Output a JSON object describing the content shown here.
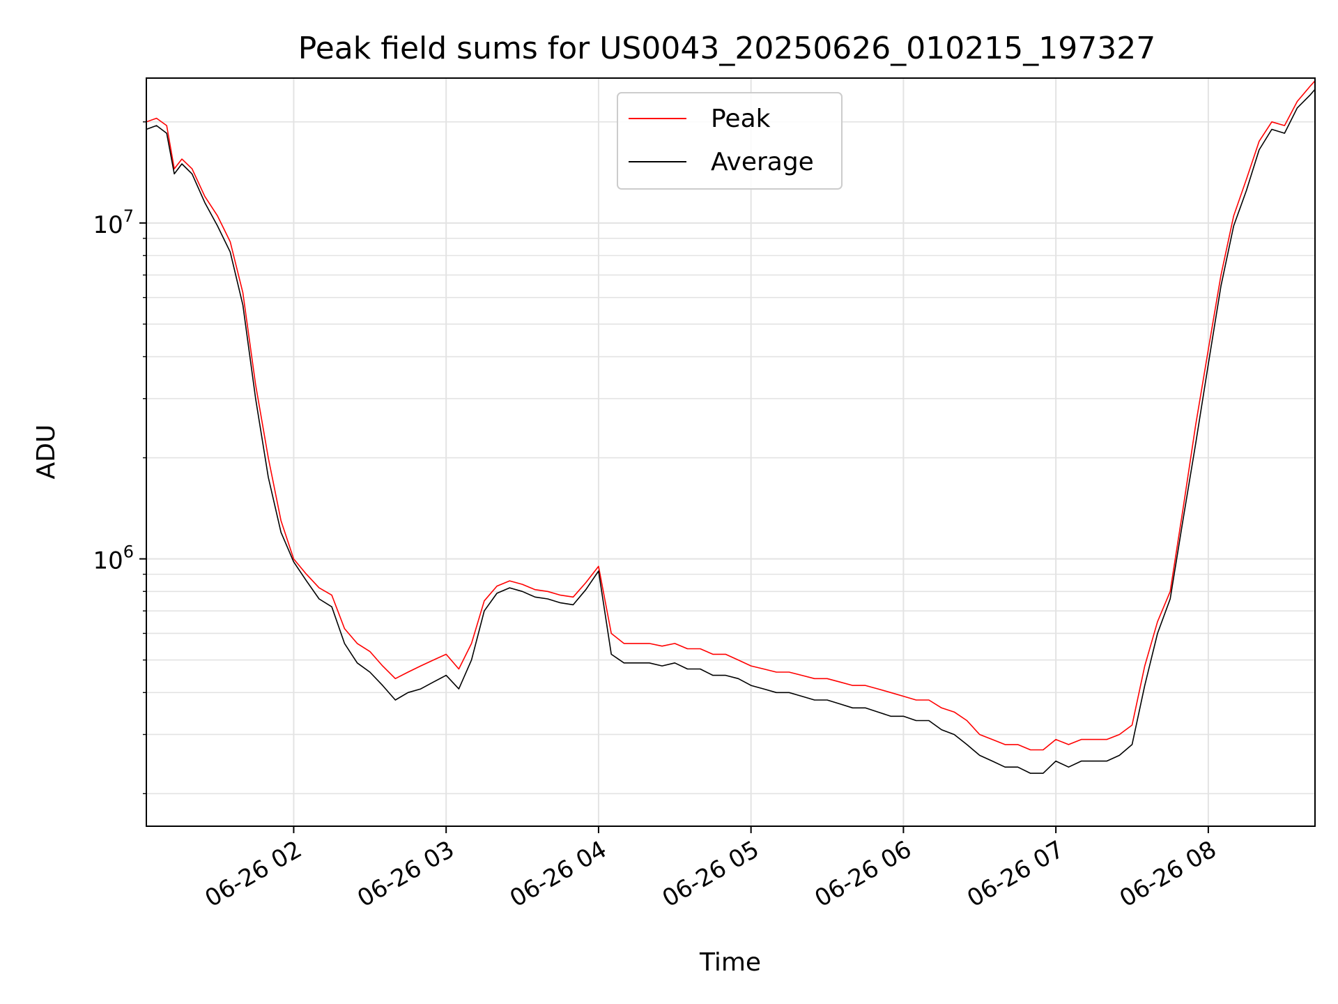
{
  "chart_data": {
    "type": "line",
    "title": "Peak field sums for US0043_20250626_010215_197327",
    "xlabel": "Time",
    "ylabel": "ADU",
    "y_scale": "log",
    "ylim": [
      160000,
      27000000
    ],
    "xlim": [
      "06-26 01:02",
      "06-26 08:42"
    ],
    "grid": true,
    "legend_position": "top-center",
    "x_ticks": [
      "06-26 02",
      "06-26 03",
      "06-26 04",
      "06-26 05",
      "06-26 06",
      "06-26 07",
      "06-26 08"
    ],
    "x_tick_times": [
      "06-26 02:00",
      "06-26 03:00",
      "06-26 04:00",
      "06-26 05:00",
      "06-26 06:00",
      "06-26 07:00",
      "06-26 08:00"
    ],
    "y_ticks": [
      {
        "value": 1000000,
        "base": "10",
        "exp": "6"
      },
      {
        "value": 10000000,
        "base": "10",
        "exp": "7"
      }
    ],
    "series": [
      {
        "name": "Peak",
        "color": "#ff0000",
        "x": [
          "06-26 01:02",
          "06-26 01:06",
          "06-26 01:10",
          "06-26 01:13",
          "06-26 01:16",
          "06-26 01:20",
          "06-26 01:25",
          "06-26 01:30",
          "06-26 01:35",
          "06-26 01:40",
          "06-26 01:45",
          "06-26 01:50",
          "06-26 01:55",
          "06-26 02:00",
          "06-26 02:05",
          "06-26 02:10",
          "06-26 02:15",
          "06-26 02:20",
          "06-26 02:25",
          "06-26 02:30",
          "06-26 02:35",
          "06-26 02:40",
          "06-26 02:45",
          "06-26 02:50",
          "06-26 02:55",
          "06-26 03:00",
          "06-26 03:05",
          "06-26 03:10",
          "06-26 03:15",
          "06-26 03:20",
          "06-26 03:25",
          "06-26 03:30",
          "06-26 03:35",
          "06-26 03:40",
          "06-26 03:45",
          "06-26 03:50",
          "06-26 03:55",
          "06-26 04:00",
          "06-26 04:05",
          "06-26 04:10",
          "06-26 04:15",
          "06-26 04:20",
          "06-26 04:25",
          "06-26 04:30",
          "06-26 04:35",
          "06-26 04:40",
          "06-26 04:45",
          "06-26 04:50",
          "06-26 04:55",
          "06-26 05:00",
          "06-26 05:05",
          "06-26 05:10",
          "06-26 05:15",
          "06-26 05:20",
          "06-26 05:25",
          "06-26 05:30",
          "06-26 05:35",
          "06-26 05:40",
          "06-26 05:45",
          "06-26 05:50",
          "06-26 05:55",
          "06-26 06:00",
          "06-26 06:05",
          "06-26 06:10",
          "06-26 06:15",
          "06-26 06:20",
          "06-26 06:25",
          "06-26 06:30",
          "06-26 06:35",
          "06-26 06:40",
          "06-26 06:45",
          "06-26 06:50",
          "06-26 06:55",
          "06-26 07:00",
          "06-26 07:05",
          "06-26 07:10",
          "06-26 07:15",
          "06-26 07:20",
          "06-26 07:25",
          "06-26 07:30",
          "06-26 07:35",
          "06-26 07:40",
          "06-26 07:45",
          "06-26 07:50",
          "06-26 07:55",
          "06-26 08:00",
          "06-26 08:05",
          "06-26 08:10",
          "06-26 08:15",
          "06-26 08:20",
          "06-26 08:25",
          "06-26 08:30",
          "06-26 08:35",
          "06-26 08:40",
          "06-26 08:42"
        ],
        "values": [
          20000000,
          20500000,
          19500000,
          14500000,
          15500000,
          14500000,
          12000000,
          10500000,
          8800000,
          6200000,
          3300000,
          2000000,
          1300000,
          1000000,
          900000,
          820000,
          780000,
          620000,
          560000,
          530000,
          480000,
          440000,
          460000,
          480000,
          500000,
          520000,
          470000,
          560000,
          750000,
          830000,
          860000,
          840000,
          810000,
          800000,
          780000,
          770000,
          850000,
          950000,
          600000,
          560000,
          560000,
          560000,
          550000,
          560000,
          540000,
          540000,
          520000,
          520000,
          500000,
          480000,
          470000,
          460000,
          460000,
          450000,
          440000,
          440000,
          430000,
          420000,
          420000,
          410000,
          400000,
          390000,
          380000,
          380000,
          360000,
          350000,
          330000,
          300000,
          290000,
          280000,
          280000,
          270000,
          270000,
          290000,
          280000,
          290000,
          290000,
          290000,
          300000,
          320000,
          480000,
          650000,
          800000,
          1400000,
          2500000,
          4200000,
          7000000,
          10500000,
          13500000,
          17500000,
          20000000,
          19500000,
          23000000,
          25500000,
          26500000
        ]
      },
      {
        "name": "Average",
        "color": "#000000",
        "x": [
          "06-26 01:02",
          "06-26 01:06",
          "06-26 01:10",
          "06-26 01:13",
          "06-26 01:16",
          "06-26 01:20",
          "06-26 01:25",
          "06-26 01:30",
          "06-26 01:35",
          "06-26 01:40",
          "06-26 01:45",
          "06-26 01:50",
          "06-26 01:55",
          "06-26 02:00",
          "06-26 02:05",
          "06-26 02:10",
          "06-26 02:15",
          "06-26 02:20",
          "06-26 02:25",
          "06-26 02:30",
          "06-26 02:35",
          "06-26 02:40",
          "06-26 02:45",
          "06-26 02:50",
          "06-26 02:55",
          "06-26 03:00",
          "06-26 03:05",
          "06-26 03:10",
          "06-26 03:15",
          "06-26 03:20",
          "06-26 03:25",
          "06-26 03:30",
          "06-26 03:35",
          "06-26 03:40",
          "06-26 03:45",
          "06-26 03:50",
          "06-26 03:55",
          "06-26 04:00",
          "06-26 04:05",
          "06-26 04:10",
          "06-26 04:15",
          "06-26 04:20",
          "06-26 04:25",
          "06-26 04:30",
          "06-26 04:35",
          "06-26 04:40",
          "06-26 04:45",
          "06-26 04:50",
          "06-26 04:55",
          "06-26 05:00",
          "06-26 05:05",
          "06-26 05:10",
          "06-26 05:15",
          "06-26 05:20",
          "06-26 05:25",
          "06-26 05:30",
          "06-26 05:35",
          "06-26 05:40",
          "06-26 05:45",
          "06-26 05:50",
          "06-26 05:55",
          "06-26 06:00",
          "06-26 06:05",
          "06-26 06:10",
          "06-26 06:15",
          "06-26 06:20",
          "06-26 06:25",
          "06-26 06:30",
          "06-26 06:35",
          "06-26 06:40",
          "06-26 06:45",
          "06-26 06:50",
          "06-26 06:55",
          "06-26 07:00",
          "06-26 07:05",
          "06-26 07:10",
          "06-26 07:15",
          "06-26 07:20",
          "06-26 07:25",
          "06-26 07:30",
          "06-26 07:35",
          "06-26 07:40",
          "06-26 07:45",
          "06-26 07:50",
          "06-26 07:55",
          "06-26 08:00",
          "06-26 08:05",
          "06-26 08:10",
          "06-26 08:15",
          "06-26 08:20",
          "06-26 08:25",
          "06-26 08:30",
          "06-26 08:35",
          "06-26 08:40",
          "06-26 08:42"
        ],
        "values": [
          19000000,
          19500000,
          18500000,
          14000000,
          15000000,
          14000000,
          11500000,
          9800000,
          8200000,
          5700000,
          3000000,
          1750000,
          1200000,
          980000,
          860000,
          760000,
          720000,
          560000,
          490000,
          460000,
          420000,
          380000,
          400000,
          410000,
          430000,
          450000,
          410000,
          500000,
          700000,
          790000,
          820000,
          800000,
          770000,
          760000,
          740000,
          730000,
          810000,
          920000,
          520000,
          490000,
          490000,
          490000,
          480000,
          490000,
          470000,
          470000,
          450000,
          450000,
          440000,
          420000,
          410000,
          400000,
          400000,
          390000,
          380000,
          380000,
          370000,
          360000,
          360000,
          350000,
          340000,
          340000,
          330000,
          330000,
          310000,
          300000,
          280000,
          260000,
          250000,
          240000,
          240000,
          230000,
          230000,
          250000,
          240000,
          250000,
          250000,
          250000,
          260000,
          280000,
          420000,
          600000,
          760000,
          1300000,
          2200000,
          3800000,
          6500000,
          9800000,
          12500000,
          16500000,
          19000000,
          18500000,
          22000000,
          24000000,
          25000000
        ]
      }
    ]
  }
}
